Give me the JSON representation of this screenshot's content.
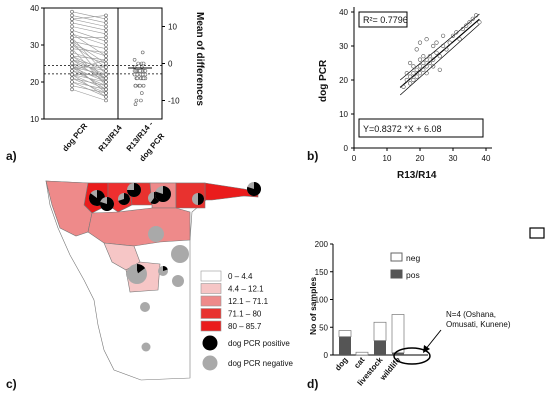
{
  "panels": {
    "a": {
      "label": "a)",
      "left_ylim": [
        10,
        40
      ],
      "left_yticks": [
        "10",
        "20",
        "30",
        "40"
      ],
      "right_ylim": [
        -15,
        15
      ],
      "right_yticks": [
        "-10",
        "0",
        "10"
      ],
      "right_ylabel": "Mean of differences",
      "xlabels": [
        "dog PCR",
        "R13/R14",
        "R13/R14 -",
        "dog PCR"
      ],
      "dotted_lines_y": [
        22.2,
        24.5
      ],
      "diff_mean": -1.2
    },
    "b": {
      "label": "b)",
      "r2": "R²= 0.7796",
      "equation": "Y=0.8372 *X + 6.08",
      "xlabel": "R13/R14",
      "ylabel": "dog PCR",
      "xticks": [
        "0",
        "10",
        "20",
        "30",
        "40"
      ],
      "yticks": [
        "0",
        "10",
        "20",
        "30",
        "40"
      ],
      "xlim": [
        0,
        40
      ],
      "ylim": [
        0,
        40
      ],
      "slope": 0.8372,
      "intercept": 6.08
    },
    "c": {
      "label": "c)",
      "legend_ranges": [
        "0 – 4.4",
        "4.4 – 12.1",
        "12.1 – 71.1",
        "71.1 – 80",
        "80 – 85.7"
      ],
      "legend_colors": [
        "#ffffff",
        "#f6c6c6",
        "#ee8a8a",
        "#e8322f",
        "#ea1c1c"
      ],
      "legend_pos": "dog PCR positive",
      "legend_neg": "dog PCR negative",
      "positive_color": "#000000",
      "negative_color": "#a9a9a9"
    },
    "d": {
      "label": "d)",
      "ylabel": "No of samples",
      "yticks": [
        "0",
        "50",
        "100",
        "150",
        "200"
      ],
      "categories": [
        "dog",
        "cat",
        "livestock",
        "wildlife"
      ],
      "legend_neg": "neg",
      "legend_pos": "pos",
      "annotation": "N=4 (Oshana,\nOmusati, Kunene)"
    }
  },
  "chart_data": [
    {
      "type": "scatter",
      "title": "",
      "xlabel": "R13/R14",
      "ylabel": "dog PCR",
      "xlim": [
        0,
        40
      ],
      "ylim": [
        0,
        40
      ],
      "annotations": [
        "R²= 0.7796",
        "Y=0.8372 *X + 6.08"
      ],
      "points": [
        [
          15,
          18
        ],
        [
          16,
          20
        ],
        [
          16,
          22
        ],
        [
          17,
          19
        ],
        [
          17,
          21
        ],
        [
          18,
          20
        ],
        [
          18,
          22
        ],
        [
          18,
          24
        ],
        [
          19,
          21
        ],
        [
          19,
          23
        ],
        [
          20,
          22
        ],
        [
          20,
          24
        ],
        [
          20,
          26
        ],
        [
          21,
          23
        ],
        [
          21,
          25
        ],
        [
          21,
          27
        ],
        [
          22,
          22
        ],
        [
          22,
          24
        ],
        [
          22,
          26
        ],
        [
          23,
          25
        ],
        [
          23,
          27
        ],
        [
          24,
          24
        ],
        [
          24,
          26
        ],
        [
          24,
          30
        ],
        [
          25,
          28
        ],
        [
          25,
          31
        ],
        [
          26,
          27
        ],
        [
          27,
          30
        ],
        [
          27,
          33
        ],
        [
          28,
          29
        ],
        [
          29,
          31
        ],
        [
          30,
          33
        ],
        [
          31,
          34
        ],
        [
          32,
          32
        ],
        [
          33,
          35
        ],
        [
          34,
          36
        ],
        [
          35,
          37
        ],
        [
          36,
          38
        ],
        [
          37,
          39
        ],
        [
          38,
          37
        ],
        [
          19,
          29
        ],
        [
          20,
          31
        ],
        [
          17,
          25
        ],
        [
          22,
          32
        ],
        [
          26,
          23
        ]
      ]
    },
    {
      "type": "bar",
      "title": "",
      "xlabel": "",
      "ylabel": "No of samples",
      "ylim": [
        0,
        200
      ],
      "categories": [
        "dog",
        "cat",
        "livestock",
        "wildlife"
      ],
      "series": [
        {
          "name": "pos",
          "values": [
            33,
            0,
            26,
            4
          ]
        },
        {
          "name": "neg",
          "values": [
            11,
            5,
            33,
            69
          ]
        }
      ],
      "stacked": true,
      "legend": "top-right"
    },
    {
      "type": "scatter",
      "title": "",
      "xlabel": "",
      "ylabel": "",
      "series_pair_left": [
        "dog PCR",
        "R13/R14"
      ],
      "right_axis_label": "Mean of differences",
      "pairs_count": 45,
      "diff_mean": -1.2
    }
  ]
}
